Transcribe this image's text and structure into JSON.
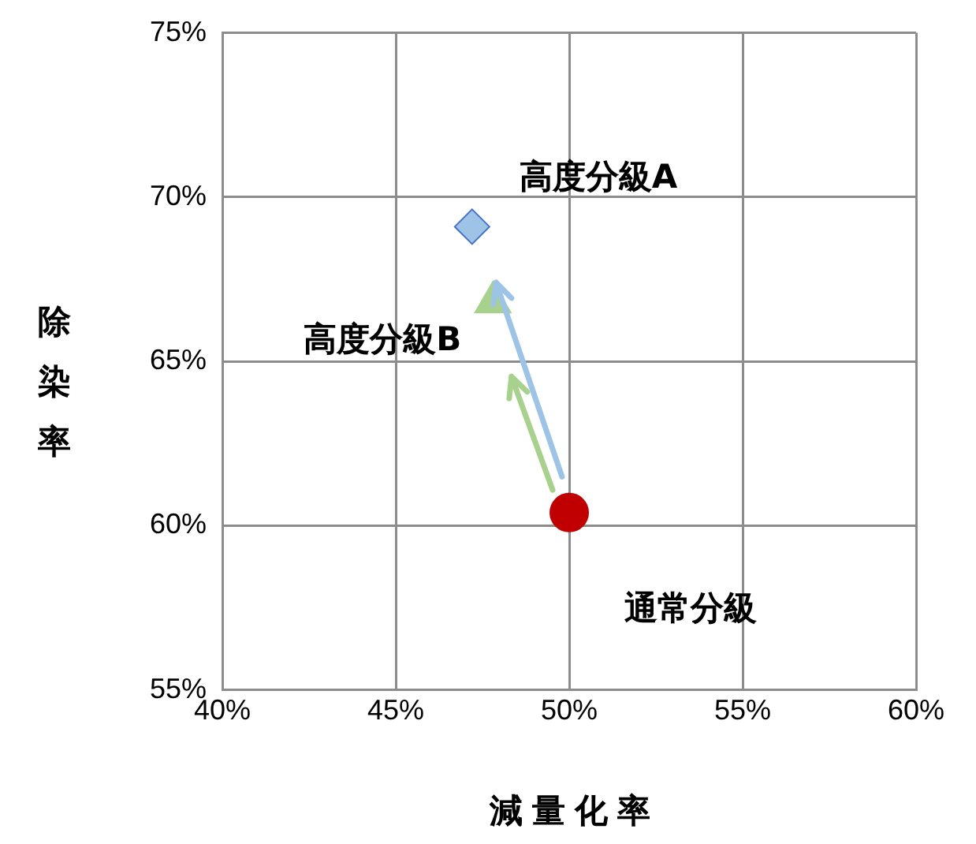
{
  "chart_data": {
    "type": "scatter",
    "xlabel": "減量化率",
    "ylabel": "除染率",
    "xlim": [
      40,
      60
    ],
    "xticks": [
      {
        "value": 40,
        "label": "40%"
      },
      {
        "value": 45,
        "label": "45%"
      },
      {
        "value": 50,
        "label": "50%"
      },
      {
        "value": 55,
        "label": "55%"
      },
      {
        "value": 60,
        "label": "60%"
      }
    ],
    "ylim": [
      55,
      75
    ],
    "yticks": [
      {
        "value": 55,
        "label": "55%"
      },
      {
        "value": 60,
        "label": "60%"
      },
      {
        "value": 65,
        "label": "65%"
      },
      {
        "value": 70,
        "label": "70%"
      },
      {
        "value": 75,
        "label": "75%"
      }
    ],
    "grid": true,
    "series": [
      {
        "name": "高度分級A",
        "color": "#9dc3e6",
        "marker": "diamond",
        "x": [
          47.2
        ],
        "values": [
          69.1
        ]
      },
      {
        "name": "高度分級B",
        "color": "#a9d18e",
        "marker": "triangle",
        "x": [
          47.8
        ],
        "values": [
          66.8
        ]
      },
      {
        "name": "通常分級",
        "color": "#c00000",
        "marker": "circle",
        "x": [
          50.0
        ],
        "values": [
          60.4
        ]
      }
    ]
  }
}
